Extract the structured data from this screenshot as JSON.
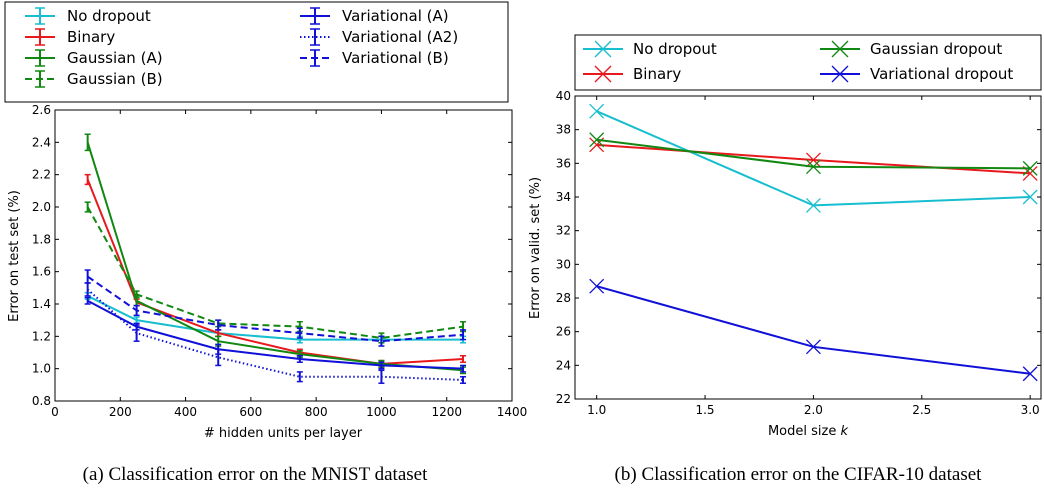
{
  "chart_data": [
    {
      "type": "line",
      "caption": "(a) Classification error on the MNIST dataset",
      "xlabel": "# hidden units per layer",
      "ylabel": "Error on test set (%)",
      "xlim": [
        0,
        1400
      ],
      "ylim": [
        0.8,
        2.6
      ],
      "xticks": [
        0,
        200,
        400,
        600,
        800,
        1000,
        1200,
        1400
      ],
      "yticks": [
        0.8,
        1.0,
        1.2,
        1.4,
        1.6,
        1.8,
        2.0,
        2.2,
        2.4,
        2.6
      ],
      "grid": false,
      "legend_position": "top (above plot), two columns",
      "x": [
        100,
        250,
        500,
        750,
        1000,
        1250
      ],
      "series": [
        {
          "name": "No dropout",
          "color": "#17becf",
          "style": "solid",
          "values": [
            1.45,
            1.3,
            1.22,
            1.18,
            1.18,
            1.18
          ],
          "err": [
            0.02,
            0.02,
            0.02,
            0.02,
            0.02,
            0.02
          ]
        },
        {
          "name": "Binary",
          "color": "#e8191c",
          "style": "solid",
          "values": [
            2.17,
            1.41,
            1.22,
            1.1,
            1.03,
            1.06
          ],
          "err": [
            0.03,
            0.02,
            0.02,
            0.02,
            0.02,
            0.02
          ]
        },
        {
          "name": "Gaussian (A)",
          "color": "#118811",
          "style": "solid",
          "values": [
            2.4,
            1.42,
            1.17,
            1.09,
            1.03,
            0.99
          ],
          "err": [
            0.05,
            0.03,
            0.03,
            0.02,
            0.02,
            0.02
          ]
        },
        {
          "name": "Gaussian (B)",
          "color": "#118811",
          "style": "dashed",
          "values": [
            2.0,
            1.46,
            1.28,
            1.26,
            1.19,
            1.26
          ],
          "err": [
            0.03,
            0.02,
            0.02,
            0.03,
            0.03,
            0.03
          ]
        },
        {
          "name": "Variational (A)",
          "color": "#1010d8",
          "style": "solid",
          "values": [
            1.42,
            1.26,
            1.12,
            1.06,
            1.02,
            1.0
          ],
          "err": [
            0.02,
            0.02,
            0.03,
            0.02,
            0.02,
            0.02
          ]
        },
        {
          "name": "Variational (A2)",
          "color": "#1010d8",
          "style": "dotted",
          "values": [
            1.49,
            1.22,
            1.07,
            0.95,
            0.95,
            0.93
          ],
          "err": [
            0.04,
            0.05,
            0.05,
            0.03,
            0.04,
            0.02
          ]
        },
        {
          "name": "Variational (B)",
          "color": "#1010d8",
          "style": "dashed",
          "values": [
            1.57,
            1.36,
            1.27,
            1.22,
            1.17,
            1.21
          ],
          "err": [
            0.04,
            0.03,
            0.03,
            0.03,
            0.03,
            0.03
          ]
        }
      ]
    },
    {
      "type": "line",
      "caption": "(b) Classification error on the CIFAR-10 dataset",
      "xlabel": "Model size ",
      "xlabel_var": "k",
      "ylabel": "Error on valid. set (%)",
      "xlim": [
        0.9,
        3.05
      ],
      "ylim": [
        22,
        40
      ],
      "xticks": [
        1.0,
        1.5,
        2.0,
        2.5,
        3.0
      ],
      "yticks": [
        22,
        24,
        26,
        28,
        30,
        32,
        34,
        36,
        38,
        40
      ],
      "grid": false,
      "legend_position": "top (above plot), two columns",
      "x": [
        1.0,
        2.0,
        3.0
      ],
      "series": [
        {
          "name": "No dropout",
          "color": "#17becf",
          "values": [
            39.1,
            33.5,
            34.0
          ]
        },
        {
          "name": "Binary",
          "color": "#e8191c",
          "values": [
            37.1,
            36.2,
            35.4
          ]
        },
        {
          "name": "Gaussian dropout",
          "color": "#118811",
          "values": [
            37.4,
            35.8,
            35.7
          ]
        },
        {
          "name": "Variational dropout",
          "color": "#1010d8",
          "values": [
            28.7,
            25.1,
            23.5
          ]
        }
      ]
    }
  ]
}
